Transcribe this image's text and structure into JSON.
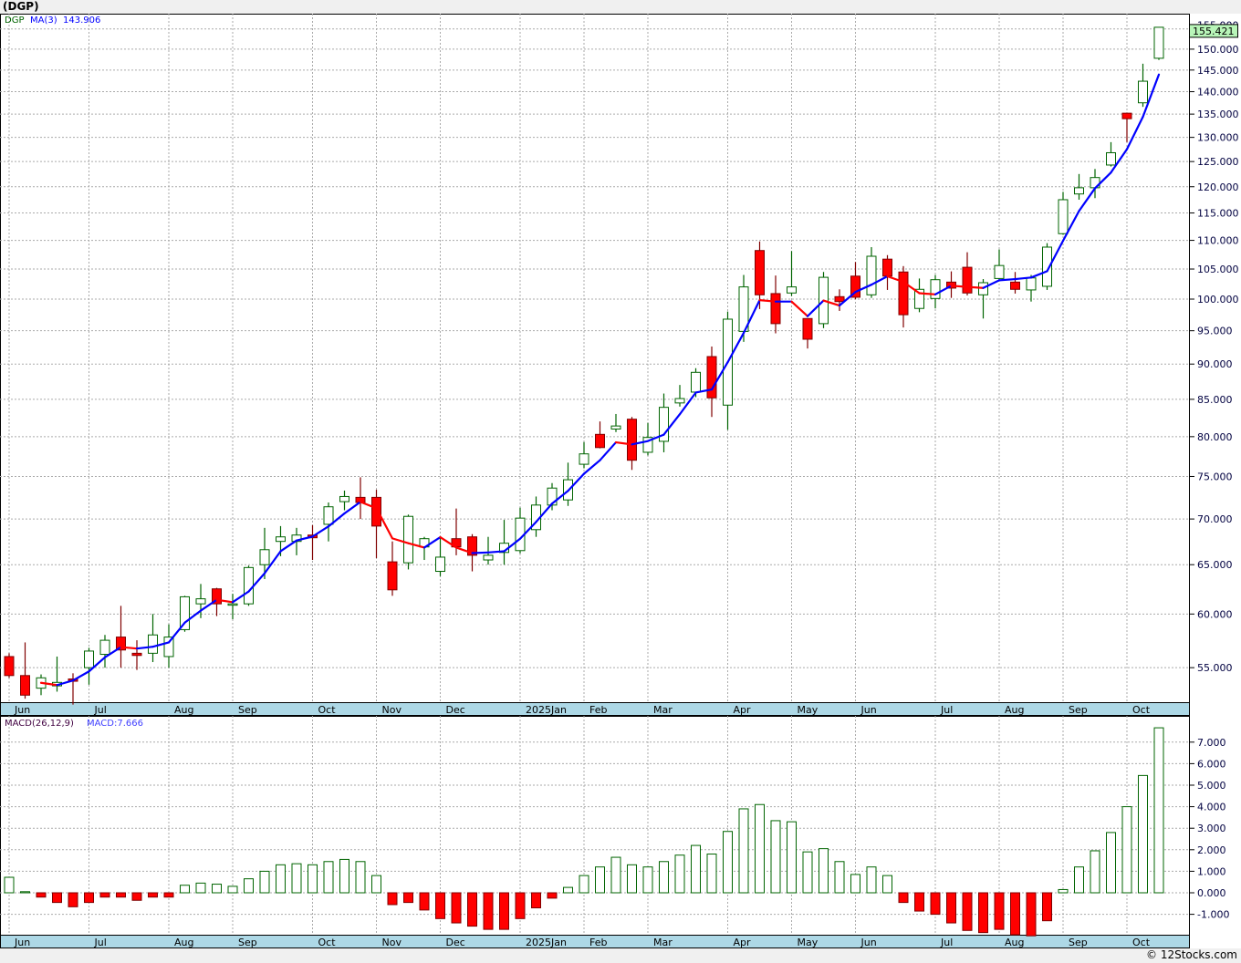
{
  "title": "(DGP)",
  "legend": {
    "symbol": "DGP",
    "ma_label": "MA(3)",
    "ma_value": "143.906"
  },
  "macd_legend": {
    "label": "MACD(26,12,9)",
    "value": "MACD:7.666"
  },
  "current_price": "155.421",
  "footer": "© 12Stocks.com",
  "colors": {
    "up": "#006400",
    "down_fill": "#ff0000",
    "down_edge": "#800000",
    "ma_up": "#0000ff",
    "ma_down": "#ff0000",
    "axis_band": "#add8e6",
    "price_box": "#b8f5b8"
  },
  "chart_data": [
    {
      "type": "candlestick",
      "title": "DGP weekly",
      "yscale": "log",
      "ylim": [
        51.5,
        158
      ],
      "yticks": [
        "155.000",
        "150.000",
        "145.000",
        "140.000",
        "135.000",
        "130.000",
        "125.000",
        "120.000",
        "115.000",
        "110.000",
        "105.000",
        "100.000",
        "95.000",
        "90.000",
        "85.000",
        "80.000",
        "75.000",
        "70.000",
        "65.000",
        "60.000",
        "55.000"
      ],
      "months": [
        {
          "label": "Jun",
          "index": 0
        },
        {
          "label": "Jul",
          "index": 5
        },
        {
          "label": "Aug",
          "index": 10
        },
        {
          "label": "Sep",
          "index": 14
        },
        {
          "label": "Oct",
          "index": 19
        },
        {
          "label": "Nov",
          "index": 23
        },
        {
          "label": "Dec",
          "index": 27
        },
        {
          "label": "2025Jan",
          "index": 32
        },
        {
          "label": "Feb",
          "index": 36
        },
        {
          "label": "Mar",
          "index": 40
        },
        {
          "label": "Apr",
          "index": 45
        },
        {
          "label": "May",
          "index": 49
        },
        {
          "label": "Jun",
          "index": 53
        },
        {
          "label": "Jul",
          "index": 58
        },
        {
          "label": "Aug",
          "index": 62
        },
        {
          "label": "Sep",
          "index": 66
        },
        {
          "label": "Oct",
          "index": 70
        }
      ],
      "ma_period": 3,
      "ohlc": [
        [
          56.0,
          56.3,
          54.1,
          54.3
        ],
        [
          54.3,
          57.3,
          52.3,
          52.6
        ],
        [
          53.2,
          54.4,
          52.6,
          54.1
        ],
        [
          53.4,
          56.0,
          52.9,
          53.7
        ],
        [
          54.0,
          54.5,
          51.8,
          53.8
        ],
        [
          55.0,
          56.8,
          53.5,
          56.5
        ],
        [
          56.2,
          58.0,
          55.0,
          57.5
        ],
        [
          57.8,
          60.8,
          55.0,
          56.6
        ],
        [
          56.3,
          57.5,
          54.8,
          56.1
        ],
        [
          56.3,
          60.0,
          55.5,
          58.0
        ],
        [
          56.0,
          59.0,
          55.0,
          57.8
        ],
        [
          58.5,
          61.8,
          58.3,
          61.7
        ],
        [
          61.0,
          63.0,
          59.6,
          61.5
        ],
        [
          62.5,
          62.6,
          59.8,
          61.0
        ],
        [
          60.9,
          62.0,
          59.5,
          61.0
        ],
        [
          61.0,
          64.9,
          60.8,
          64.7
        ],
        [
          65.0,
          69.0,
          63.5,
          66.6
        ],
        [
          67.5,
          69.2,
          65.9,
          68.0
        ],
        [
          67.5,
          69.0,
          66.0,
          68.2
        ],
        [
          68.2,
          69.3,
          65.5,
          67.9
        ],
        [
          69.4,
          71.9,
          67.5,
          71.4
        ],
        [
          72.0,
          73.3,
          71.0,
          72.6
        ],
        [
          72.5,
          74.9,
          70.0,
          71.9
        ],
        [
          72.5,
          73.4,
          65.7,
          69.2
        ],
        [
          65.3,
          67.5,
          61.8,
          62.4
        ],
        [
          65.2,
          70.5,
          64.5,
          70.3
        ],
        [
          66.9,
          68.0,
          65.5,
          67.8
        ],
        [
          64.3,
          67.9,
          63.8,
          65.8
        ],
        [
          67.8,
          71.2,
          66.0,
          66.9
        ],
        [
          68.0,
          68.3,
          64.3,
          66.0
        ],
        [
          65.5,
          68.0,
          65.0,
          66.0
        ],
        [
          66.3,
          69.9,
          65.0,
          67.3
        ],
        [
          66.5,
          71.3,
          66.2,
          70.1
        ],
        [
          68.8,
          72.6,
          68.0,
          71.6
        ],
        [
          71.6,
          74.2,
          71.0,
          73.6
        ],
        [
          72.2,
          76.7,
          71.5,
          74.6
        ],
        [
          76.5,
          79.3,
          76.0,
          77.8
        ],
        [
          80.3,
          82.0,
          78.5,
          78.6
        ],
        [
          81.0,
          83.0,
          80.6,
          81.4
        ],
        [
          82.3,
          82.6,
          75.8,
          77.0
        ],
        [
          78.0,
          81.8,
          77.6,
          79.9
        ],
        [
          79.4,
          85.8,
          78.0,
          83.9
        ],
        [
          84.5,
          87.0,
          84.0,
          85.1
        ],
        [
          86.0,
          89.4,
          85.3,
          88.8
        ],
        [
          91.1,
          92.6,
          82.6,
          85.2
        ],
        [
          84.2,
          98.0,
          80.9,
          96.8
        ],
        [
          94.9,
          104.0,
          93.3,
          102.0
        ],
        [
          108.2,
          109.8,
          98.4,
          100.7
        ],
        [
          100.9,
          103.9,
          94.6,
          96.1
        ],
        [
          101.0,
          108.1,
          100.5,
          102.0
        ],
        [
          96.9,
          96.9,
          92.3,
          93.7
        ],
        [
          96.1,
          104.5,
          95.4,
          103.6
        ],
        [
          100.4,
          101.6,
          98.1,
          99.6
        ],
        [
          103.8,
          106.2,
          100.0,
          100.3
        ],
        [
          100.7,
          108.8,
          100.2,
          107.2
        ],
        [
          106.7,
          107.4,
          101.5,
          103.8
        ],
        [
          104.5,
          105.5,
          95.5,
          97.5
        ],
        [
          98.5,
          103.4,
          97.9,
          101.6
        ],
        [
          100.1,
          104.0,
          98.5,
          103.2
        ],
        [
          102.8,
          104.6,
          100.2,
          101.8
        ],
        [
          105.3,
          107.9,
          100.6,
          101.0
        ],
        [
          100.7,
          103.3,
          96.9,
          102.7
        ],
        [
          103.4,
          108.4,
          103.0,
          105.6
        ],
        [
          102.8,
          104.5,
          100.9,
          101.6
        ],
        [
          101.5,
          104.0,
          99.6,
          103.5
        ],
        [
          102.1,
          109.5,
          101.5,
          108.8
        ],
        [
          111.2,
          119.0,
          111.0,
          117.5
        ],
        [
          118.6,
          122.5,
          117.5,
          119.8
        ],
        [
          119.8,
          123.5,
          117.8,
          121.8
        ],
        [
          124.3,
          129.0,
          124.0,
          126.8
        ],
        [
          135.2,
          135.2,
          129.0,
          134.0
        ],
        [
          137.5,
          146.5,
          136.6,
          142.4
        ],
        [
          147.8,
          155.5,
          147.4,
          155.421
        ]
      ]
    },
    {
      "type": "bar",
      "title": "MACD(26,12,9)",
      "ylim": [
        -2.0,
        7.9
      ],
      "yticks": [
        "7.000",
        "6.000",
        "5.000",
        "4.000",
        "3.000",
        "2.000",
        "1.000",
        "0.000",
        "-1.000"
      ],
      "values": [
        0.72,
        0.05,
        -0.2,
        -0.45,
        -0.65,
        -0.45,
        -0.2,
        -0.2,
        -0.35,
        -0.2,
        -0.2,
        0.35,
        0.45,
        0.4,
        0.3,
        0.65,
        1.0,
        1.3,
        1.35,
        1.3,
        1.45,
        1.55,
        1.45,
        0.8,
        -0.55,
        -0.45,
        -0.8,
        -1.2,
        -1.4,
        -1.55,
        -1.7,
        -1.7,
        -1.2,
        -0.7,
        -0.25,
        0.25,
        0.8,
        1.2,
        1.65,
        1.3,
        1.2,
        1.45,
        1.75,
        2.2,
        1.8,
        2.85,
        3.9,
        4.1,
        3.35,
        3.3,
        1.9,
        2.05,
        1.45,
        0.85,
        1.2,
        0.8,
        -0.45,
        -0.85,
        -1.0,
        -1.4,
        -1.75,
        -1.85,
        -1.7,
        -1.95,
        -2.0,
        -1.3,
        0.15,
        1.2,
        1.95,
        2.8,
        4.0,
        5.45,
        7.666
      ]
    }
  ]
}
